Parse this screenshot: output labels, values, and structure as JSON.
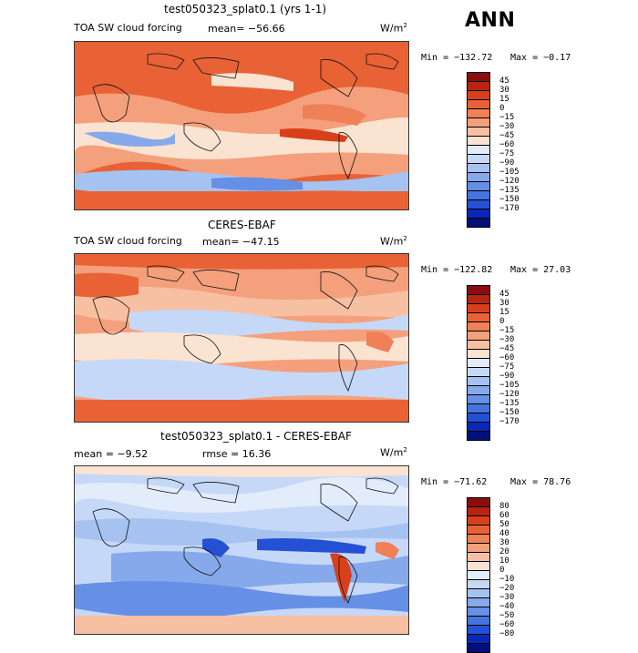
{
  "season": "ANN",
  "panels": [
    {
      "id": "test",
      "title": "test050323_splat0.1 (yrs 1-1)",
      "variable": "TOA SW cloud forcing",
      "mean_text": "mean= −56.66",
      "rmse_text": "",
      "units": "W/m",
      "units_sup": "2",
      "min_text": "Min = −132.72",
      "max_text": "Max =   −0.17",
      "colorbar_labels": [
        "45",
        "30",
        "15",
        "0",
        "−15",
        "−30",
        "−45",
        "−60",
        "−75",
        "−90",
        "−105",
        "−120",
        "−135",
        "−150",
        "−170"
      ],
      "colorbar_colors": [
        "#8b0d0d",
        "#b8240e",
        "#d8401c",
        "#e86236",
        "#ef8057",
        "#f4a07c",
        "#f8c0a2",
        "#fbe3d2",
        "#e3ecfb",
        "#c6d8f7",
        "#a6c2f1",
        "#86a9ec",
        "#6690e6",
        "#4574df",
        "#2451d4",
        "#0a28b8",
        "#00107a"
      ]
    },
    {
      "id": "obs",
      "title": "CERES-EBAF",
      "variable": "TOA SW cloud forcing",
      "mean_text": "mean= −47.15",
      "rmse_text": "",
      "units": "W/m",
      "units_sup": "2",
      "min_text": "Min = −122.82",
      "max_text": "Max =  27.03",
      "colorbar_labels": [
        "45",
        "30",
        "15",
        "0",
        "−15",
        "−30",
        "−45",
        "−60",
        "−75",
        "−90",
        "−105",
        "−120",
        "−135",
        "−150",
        "−170"
      ],
      "colorbar_colors": [
        "#8b0d0d",
        "#b8240e",
        "#d8401c",
        "#e86236",
        "#ef8057",
        "#f4a07c",
        "#f8c0a2",
        "#fbe3d2",
        "#e3ecfb",
        "#c6d8f7",
        "#a6c2f1",
        "#86a9ec",
        "#6690e6",
        "#4574df",
        "#2451d4",
        "#0a28b8",
        "#00107a"
      ]
    },
    {
      "id": "diff",
      "title": "test050323_splat0.1 - CERES-EBAF",
      "variable": "",
      "mean_text": "mean =   −9.52",
      "rmse_text": "rmse =  16.36",
      "units": "W/m",
      "units_sup": "2",
      "min_text": "Min = −71.62",
      "max_text": "Max =  78.76",
      "colorbar_labels": [
        "80",
        "60",
        "50",
        "40",
        "30",
        "20",
        "10",
        "0",
        "−10",
        "−20",
        "−30",
        "−40",
        "−50",
        "−60",
        "−80"
      ],
      "colorbar_colors": [
        "#8b0d0d",
        "#b8240e",
        "#d8401c",
        "#e86236",
        "#ef8057",
        "#f4a07c",
        "#f8c0a2",
        "#fbe3d2",
        "#e3ecfb",
        "#c6d8f7",
        "#a6c2f1",
        "#86a9ec",
        "#6690e6",
        "#4574df",
        "#2451d4",
        "#0a28b8",
        "#00107a"
      ]
    }
  ],
  "chart_data": [
    {
      "type": "heatmap",
      "title": "test050323_splat0.1 (yrs 1-1)",
      "subtitle": "TOA SW cloud forcing",
      "units": "W/m2",
      "mean": -56.66,
      "min": -132.72,
      "max": -0.17,
      "levels": [
        45,
        30,
        15,
        0,
        -15,
        -30,
        -45,
        -60,
        -75,
        -90,
        -105,
        -120,
        -135,
        -150,
        -170
      ]
    },
    {
      "type": "heatmap",
      "title": "CERES-EBAF",
      "subtitle": "TOA SW cloud forcing",
      "units": "W/m2",
      "mean": -47.15,
      "min": -122.82,
      "max": 27.03,
      "levels": [
        45,
        30,
        15,
        0,
        -15,
        -30,
        -45,
        -60,
        -75,
        -90,
        -105,
        -120,
        -135,
        -150,
        -170
      ]
    },
    {
      "type": "heatmap",
      "title": "test050323_splat0.1 - CERES-EBAF",
      "units": "W/m2",
      "mean": -9.52,
      "rmse": 16.36,
      "min": -71.62,
      "max": 78.76,
      "levels": [
        80,
        60,
        50,
        40,
        30,
        20,
        10,
        0,
        -10,
        -20,
        -30,
        -40,
        -50,
        -60,
        -80
      ]
    }
  ]
}
